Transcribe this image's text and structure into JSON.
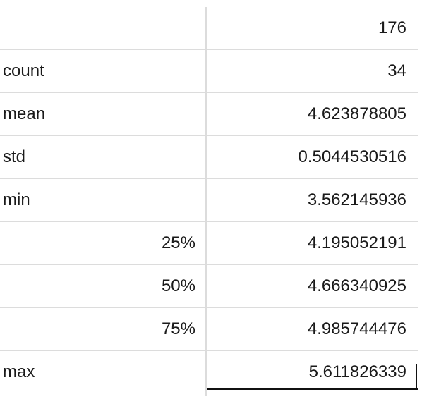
{
  "table": {
    "header": {
      "label": "",
      "value": "176"
    },
    "rows": [
      {
        "label": "count",
        "value": "34"
      },
      {
        "label": "mean",
        "value": "4.623878805"
      },
      {
        "label": "std",
        "value": "0.5044530516"
      },
      {
        "label": "min",
        "value": "3.562145936"
      },
      {
        "label": "25%",
        "value": "4.195052191"
      },
      {
        "label": "50%",
        "value": "4.666340925"
      },
      {
        "label": "75%",
        "value": "4.985744476"
      },
      {
        "label": "max",
        "value": "5.611826339"
      }
    ]
  }
}
